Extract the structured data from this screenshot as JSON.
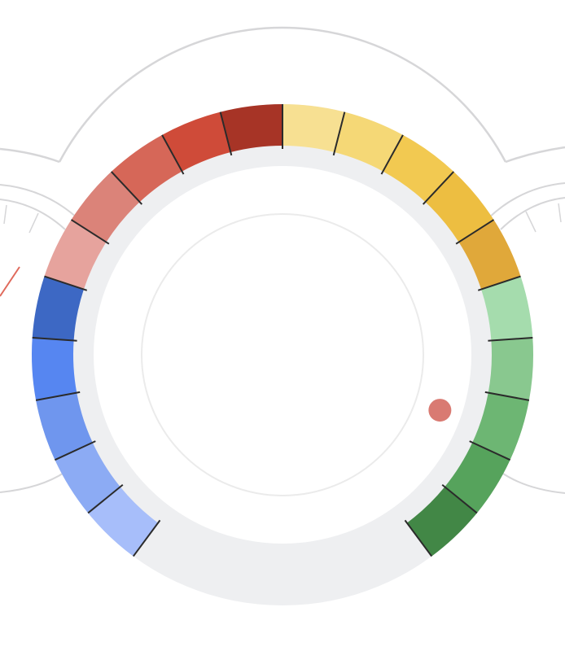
{
  "dial": {
    "track_color": "#eeeff1",
    "inner_ring_color": "#ebebeb",
    "outline_color": "#d6d6d8",
    "divider_color": "#2b2b2b",
    "indicator": {
      "color": "#d97a72",
      "position_fraction": 0.56
    },
    "side_needle_color": "#e06a5c",
    "segments": [
      {
        "group": "blue",
        "color": "#a7befa"
      },
      {
        "group": "blue",
        "color": "#8cabf4"
      },
      {
        "group": "blue",
        "color": "#6f96ee"
      },
      {
        "group": "blue",
        "color": "#5686f1"
      },
      {
        "group": "blue",
        "color": "#3d68c4"
      },
      {
        "group": "red",
        "color": "#e6a39d"
      },
      {
        "group": "red",
        "color": "#db8379"
      },
      {
        "group": "red",
        "color": "#d66758"
      },
      {
        "group": "red",
        "color": "#cf4b39"
      },
      {
        "group": "red",
        "color": "#a73426"
      },
      {
        "group": "yellow",
        "color": "#f7e092"
      },
      {
        "group": "yellow",
        "color": "#f5d876"
      },
      {
        "group": "yellow",
        "color": "#f2c951"
      },
      {
        "group": "yellow",
        "color": "#edbe41"
      },
      {
        "group": "yellow",
        "color": "#e0a83a"
      },
      {
        "group": "green",
        "color": "#a5dcad"
      },
      {
        "group": "green",
        "color": "#89c88f"
      },
      {
        "group": "green",
        "color": "#6db673"
      },
      {
        "group": "green",
        "color": "#56a35c"
      },
      {
        "group": "green",
        "color": "#428746"
      }
    ]
  }
}
